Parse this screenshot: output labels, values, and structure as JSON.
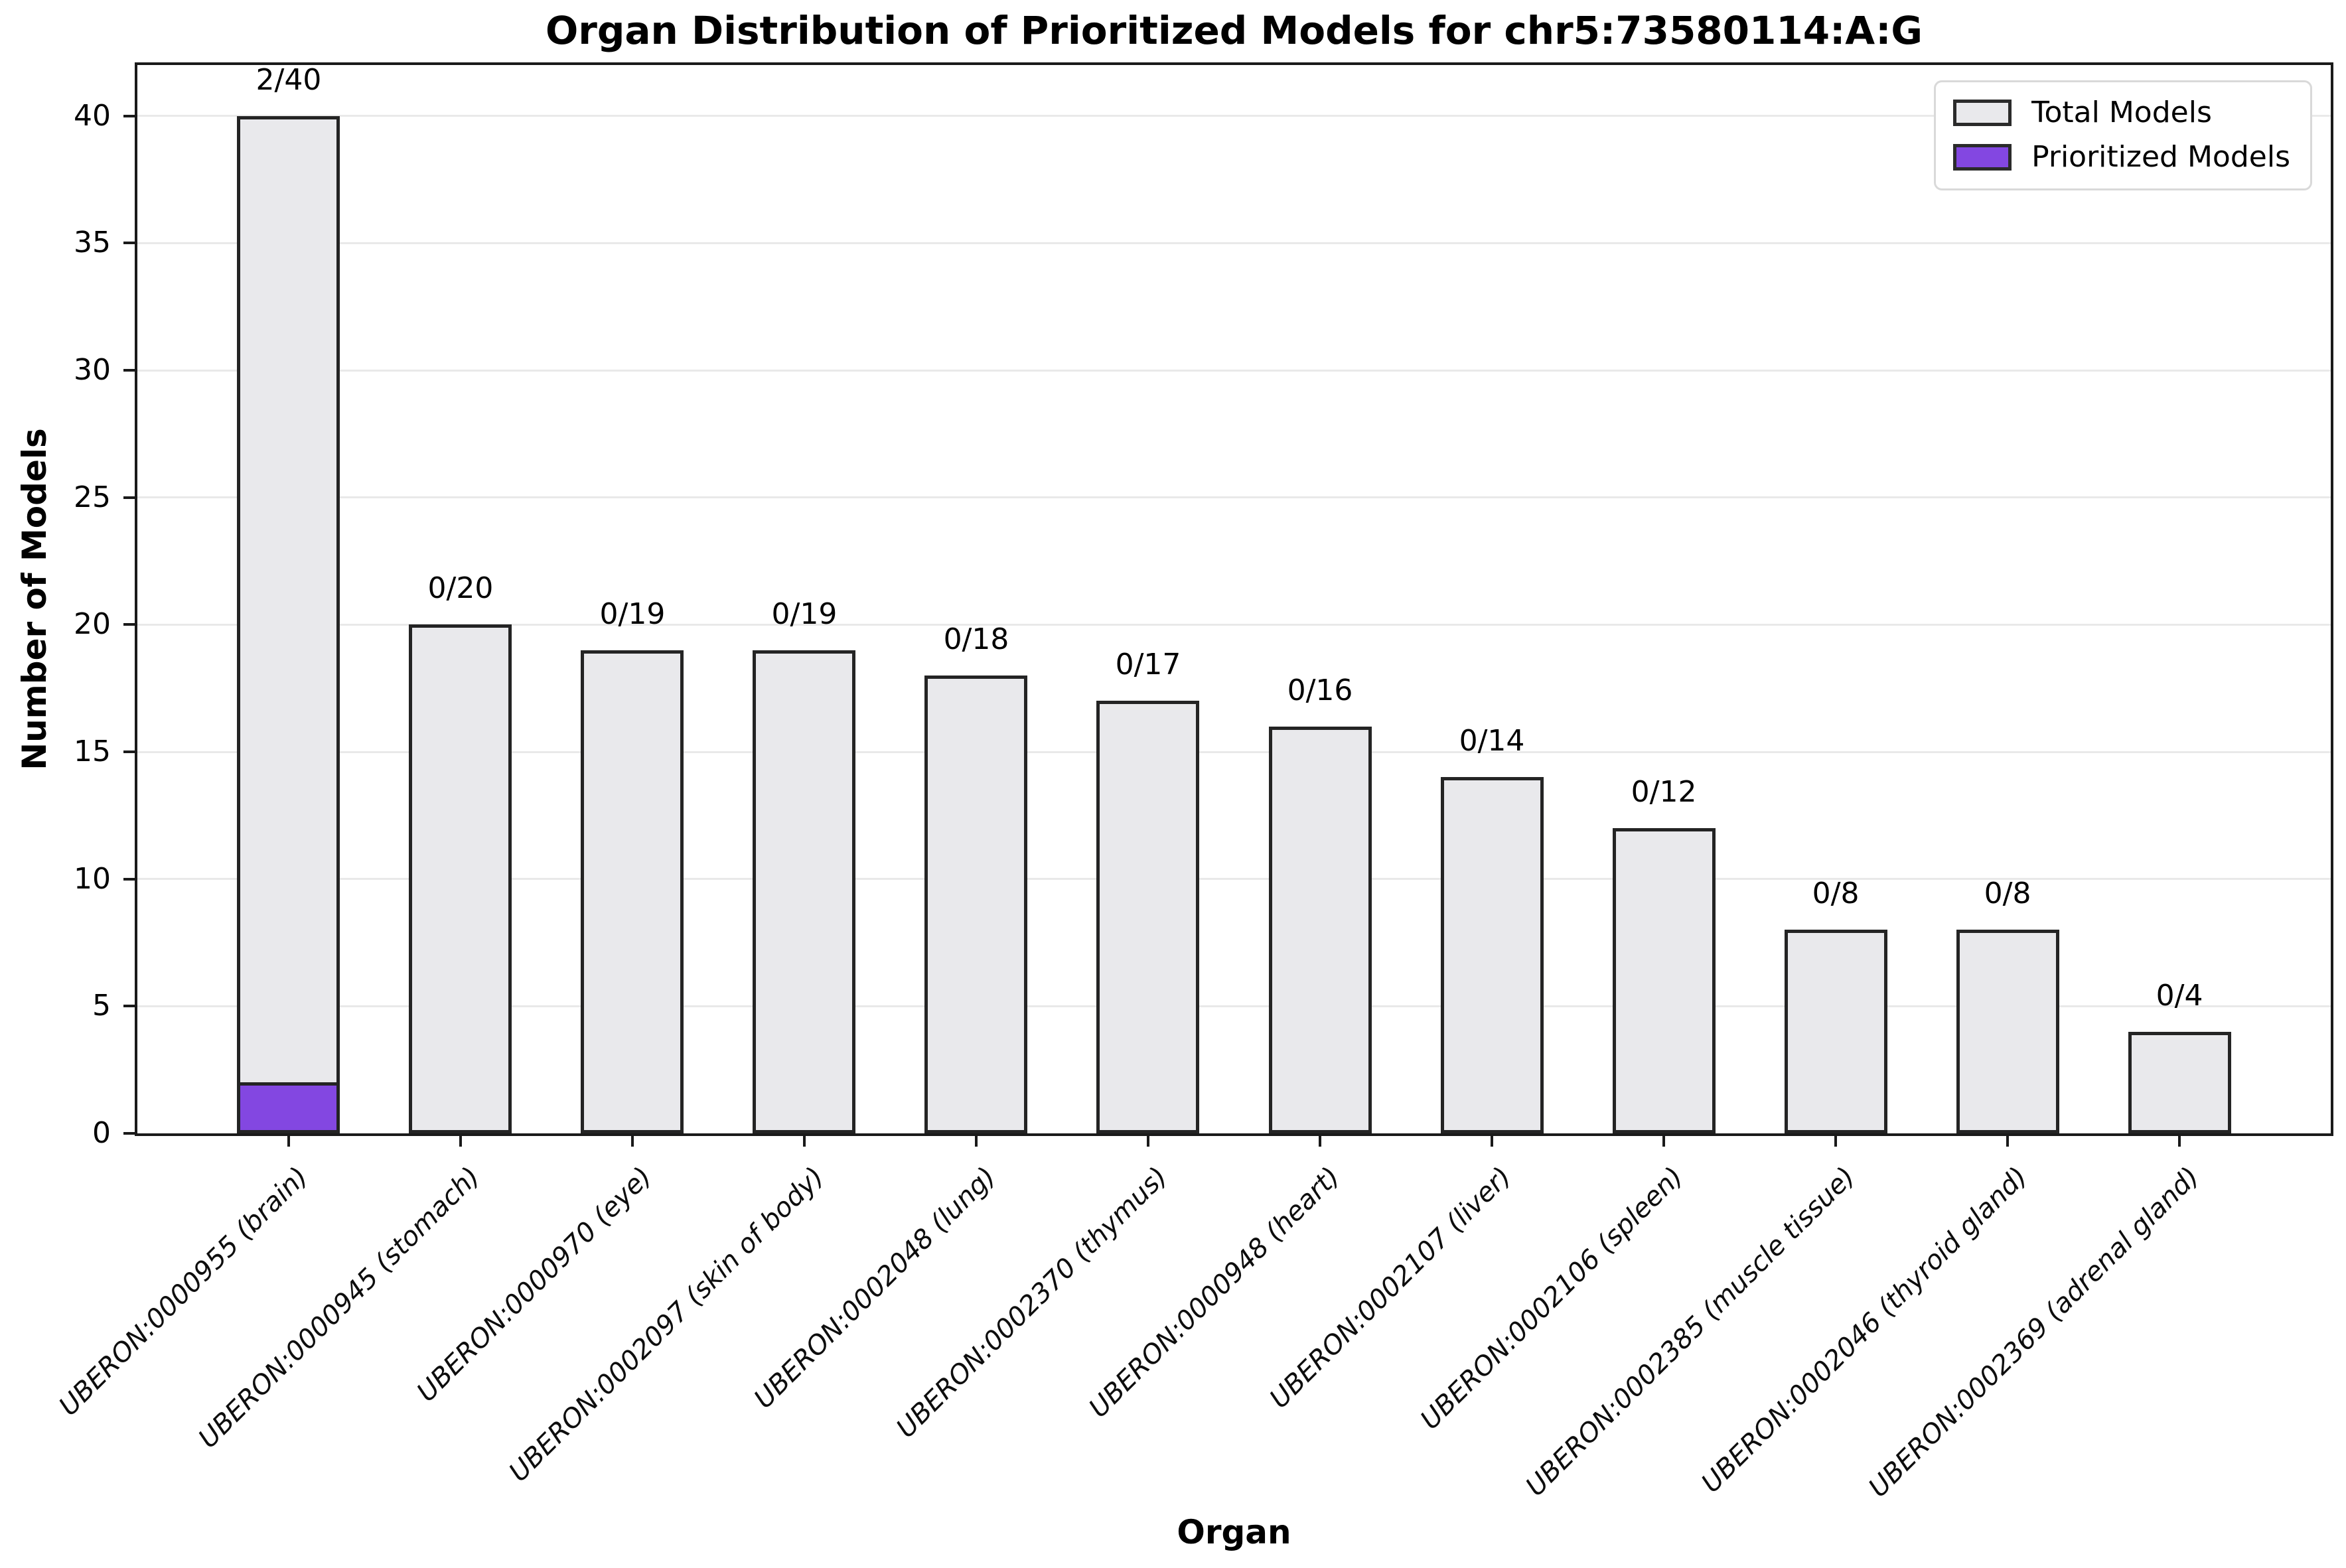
{
  "chart_data": {
    "type": "bar",
    "title": "Organ Distribution of Prioritized Models for chr5:73580114:A:G",
    "xlabel": "Organ",
    "ylabel": "Number of Models",
    "ylim": [
      0,
      42
    ],
    "yticks": [
      0,
      5,
      10,
      15,
      20,
      25,
      30,
      35,
      40
    ],
    "grid": "horizontal",
    "legend_position": "upper right",
    "categories": [
      "UBERON:0000955 (brain)",
      "UBERON:0000945 (stomach)",
      "UBERON:0000970 (eye)",
      "UBERON:0002097 (skin of body)",
      "UBERON:0002048 (lung)",
      "UBERON:0002370 (thymus)",
      "UBERON:0000948 (heart)",
      "UBERON:0002107 (liver)",
      "UBERON:0002106 (spleen)",
      "UBERON:0002385 (muscle tissue)",
      "UBERON:0002046 (thyroid gland)",
      "UBERON:0002369 (adrenal gland)"
    ],
    "series": [
      {
        "name": "Total Models",
        "color": "#e9e9ec",
        "values": [
          40,
          20,
          19,
          19,
          18,
          17,
          16,
          14,
          12,
          8,
          8,
          4
        ]
      },
      {
        "name": "Prioritized Models",
        "color": "#8347e1",
        "values": [
          2,
          0,
          0,
          0,
          0,
          0,
          0,
          0,
          0,
          0,
          0,
          0
        ]
      }
    ],
    "bar_labels": [
      "2/40",
      "0/20",
      "0/19",
      "0/19",
      "0/18",
      "0/17",
      "0/16",
      "0/14",
      "0/12",
      "0/8",
      "0/8",
      "0/4"
    ]
  },
  "colors": {
    "bar_edge": "#242424",
    "grid": "#e9e9e9",
    "spine": "#1a1a1a",
    "legend_border": "#d9d9d9",
    "total_fill": "#e9e9ec",
    "prioritized_fill": "#8347e1"
  }
}
